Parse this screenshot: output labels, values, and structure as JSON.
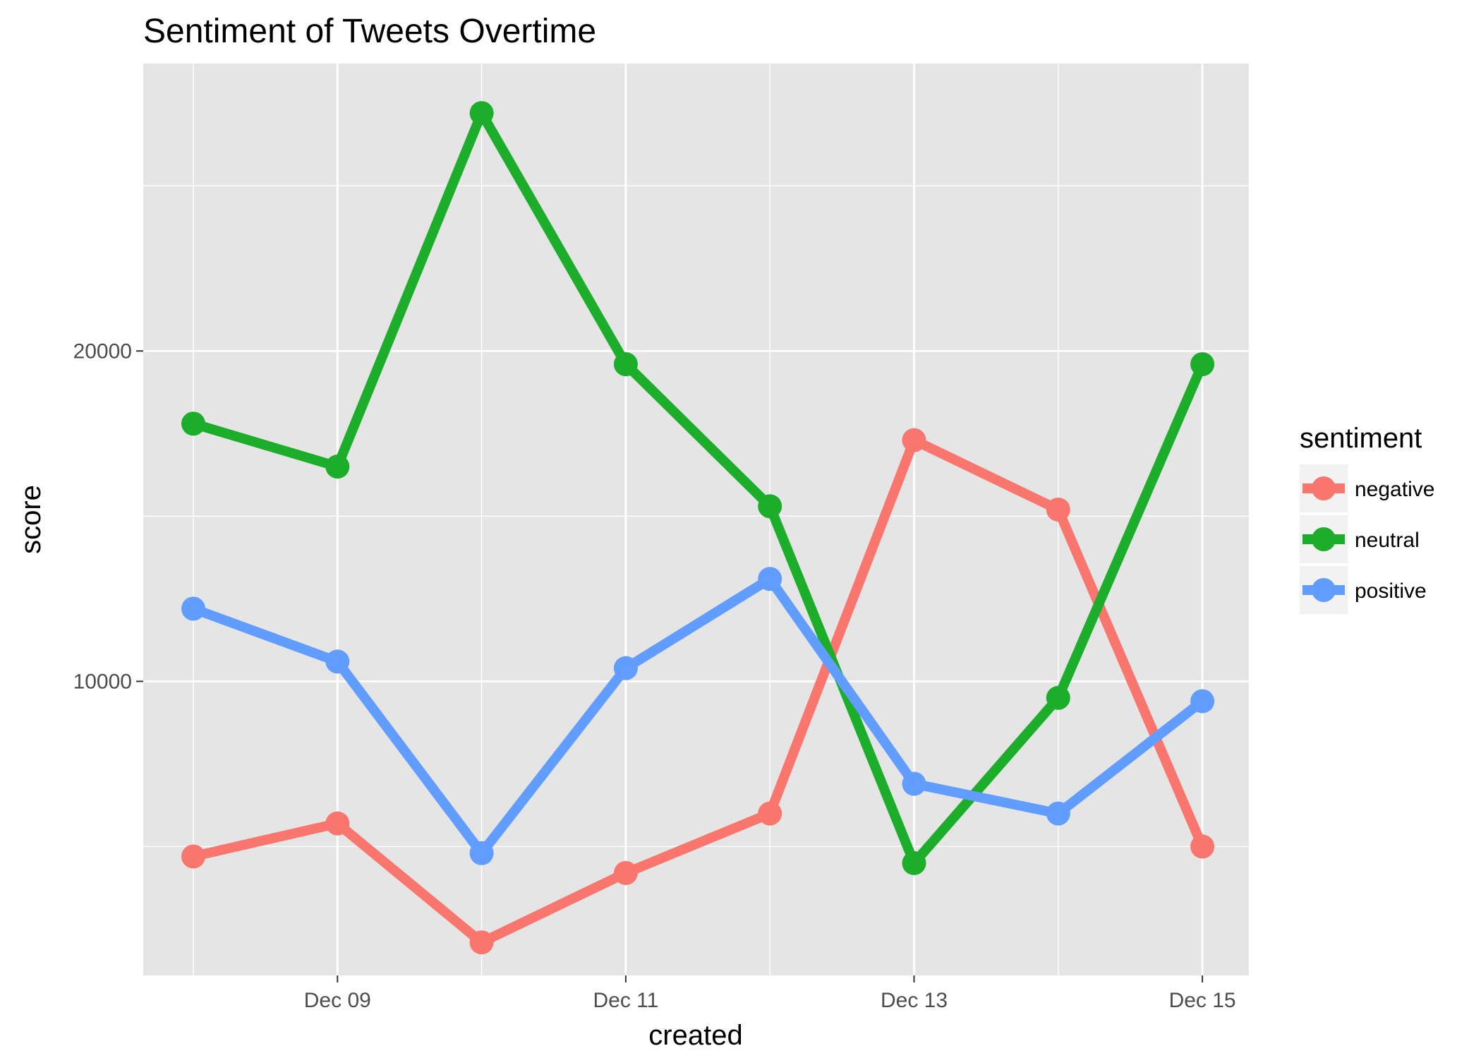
{
  "chart_data": {
    "type": "line",
    "title": "Sentiment of Tweets Overtime",
    "xlabel": "created",
    "ylabel": "score",
    "x": [
      "Dec 08",
      "Dec 09",
      "Dec 10",
      "Dec 11",
      "Dec 12",
      "Dec 13",
      "Dec 14",
      "Dec 15"
    ],
    "x_tick_labels": [
      "Dec 09",
      "Dec 11",
      "Dec 13",
      "Dec 15"
    ],
    "y_tick_labels": [
      "10000",
      "20000"
    ],
    "ylim": [
      1100,
      28700
    ],
    "grid": true,
    "legend": {
      "title": "sentiment",
      "position": "right"
    },
    "series": [
      {
        "name": "negative",
        "color": "#F8766D",
        "values": [
          4700,
          5700,
          2100,
          4200,
          6000,
          17300,
          15200,
          5000
        ]
      },
      {
        "name": "neutral",
        "color": "#1CAD2A",
        "values": [
          17800,
          16500,
          27200,
          19600,
          15300,
          4500,
          9500,
          19600
        ]
      },
      {
        "name": "positive",
        "color": "#619CFF",
        "values": [
          12200,
          10600,
          4800,
          10400,
          13100,
          6900,
          6000,
          9400
        ]
      }
    ]
  }
}
